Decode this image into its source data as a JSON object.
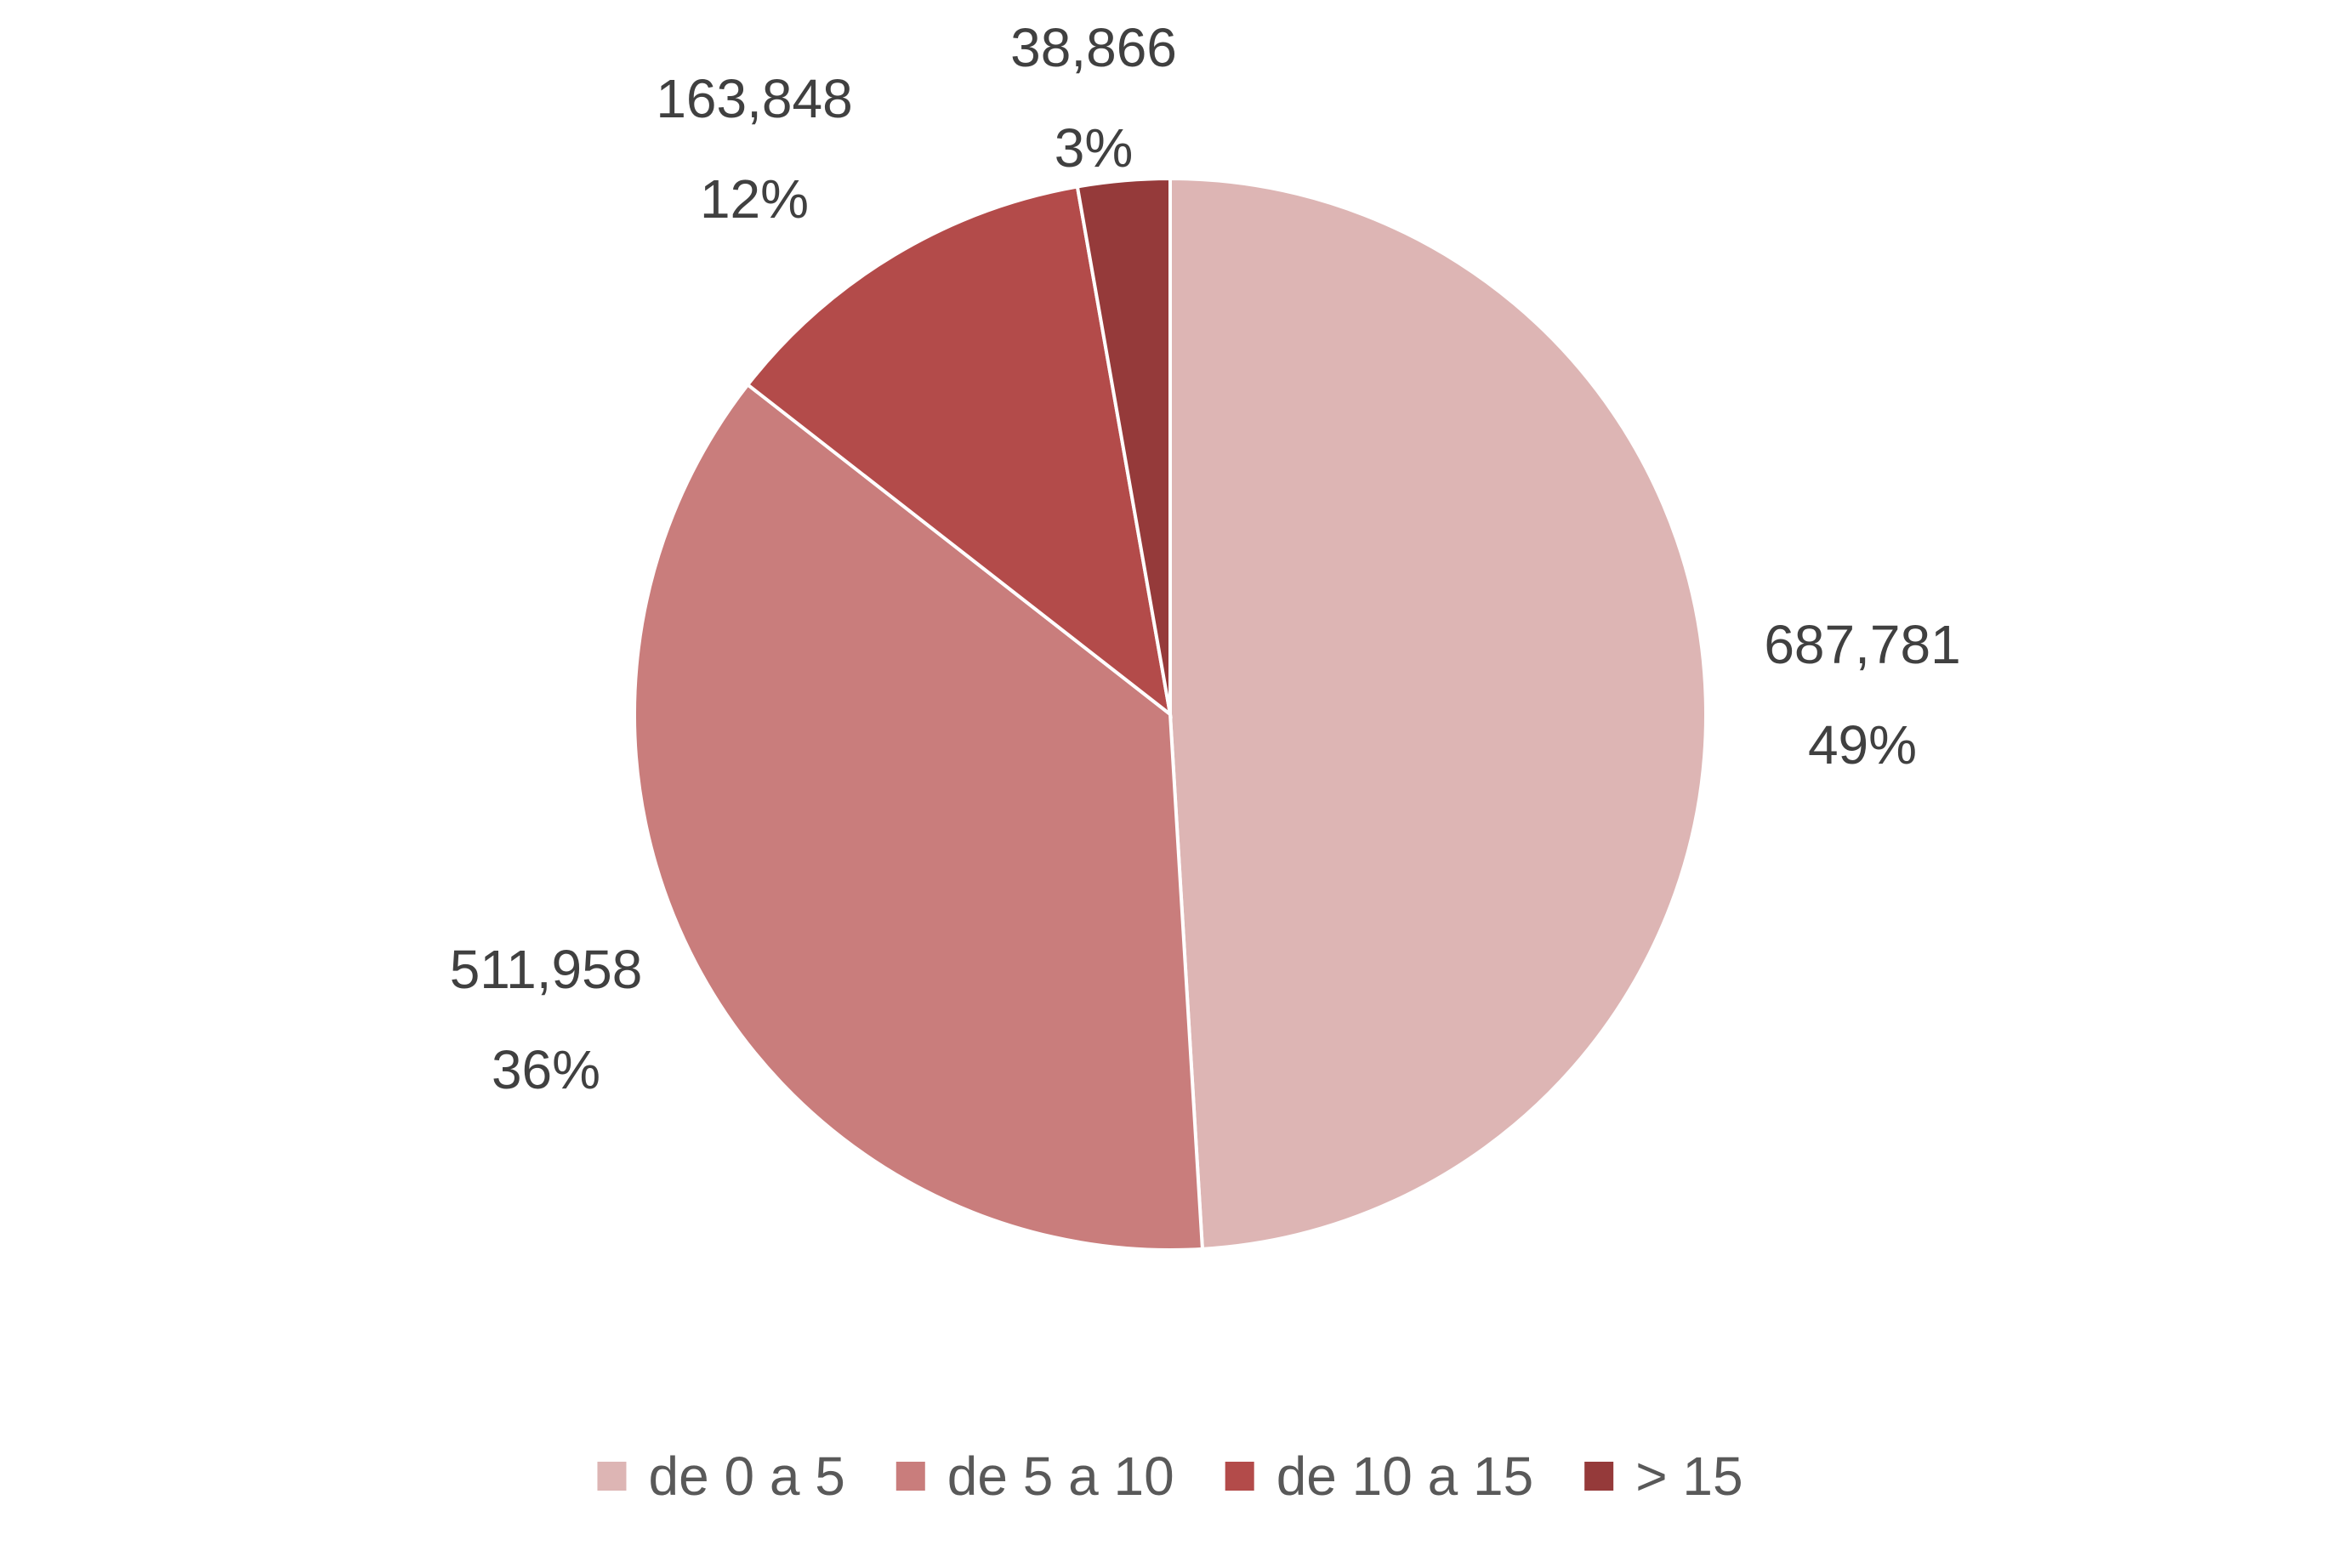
{
  "chart_data": {
    "type": "pie",
    "title": "",
    "start_angle_deg": 0,
    "direction": "clockwise",
    "legend_position": "bottom",
    "slices": [
      {
        "label": "de 0 a 5",
        "value": 687781,
        "value_text": "687,781",
        "percent_text": "49%",
        "color": "#DDB5B4"
      },
      {
        "label": "de 5 a 10",
        "value": 511958,
        "value_text": "511,958",
        "percent_text": "36%",
        "color": "#C97D7C"
      },
      {
        "label": "de 10 a 15",
        "value": 163848,
        "value_text": "163,848",
        "percent_text": "12%",
        "color": "#B34B4A"
      },
      {
        "label": "> 15",
        "value": 38866,
        "value_text": "38,866",
        "percent_text": "3%",
        "color": "#953A3A"
      }
    ]
  }
}
